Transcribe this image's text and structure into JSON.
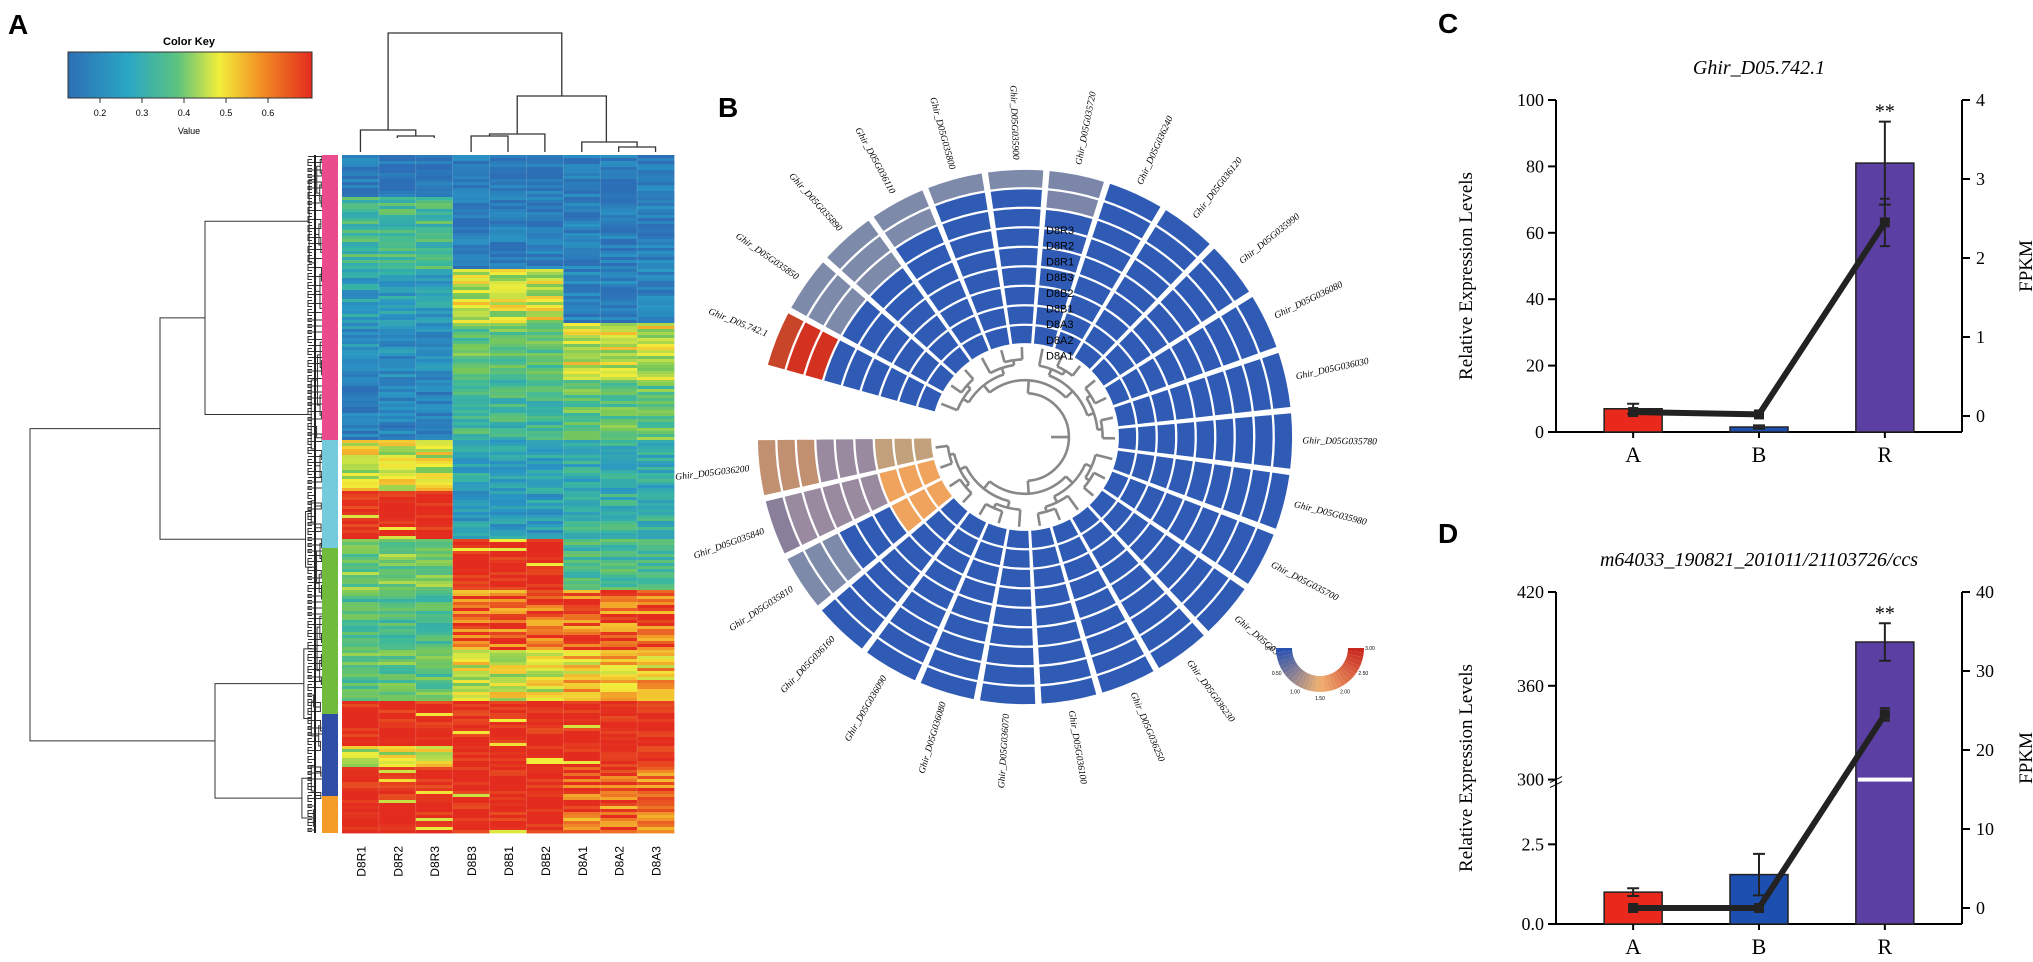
{
  "panel_labels": {
    "a": "A",
    "b": "B",
    "c": "C",
    "d": "D"
  },
  "colors": {
    "heat_low": "#2c6fb6",
    "heat_mid": "#3ab7a8",
    "heat_yellow": "#f2ee3a",
    "heat_high": "#e32b1e",
    "cluster_pink": "#ea4b8d",
    "cluster_cyan": "#74cbdb",
    "cluster_green": "#70bb3c",
    "cluster_blue": "#2f4ea5",
    "cluster_orange": "#f49b28",
    "bar_a": "#e8291c",
    "bar_b": "#1c4fb0",
    "bar_r": "#5b3fa3",
    "line": "#222222"
  },
  "heatmap": {
    "color_key_title": "Color Key",
    "color_key_ticks": [
      "0.2",
      "0.3",
      "0.4",
      "0.5",
      "0.6"
    ],
    "color_key_label": "Value",
    "columns": [
      "D8R1",
      "D8R2",
      "D8R3",
      "D8B3",
      "D8B1",
      "D8B2",
      "D8A1",
      "D8A2",
      "D8A3"
    ]
  },
  "circular": {
    "ring_labels": [
      "D8R3",
      "D8R2",
      "D8R1",
      "D8B3",
      "D8B2",
      "D8B1",
      "D8A3",
      "D8A2",
      "D8A1"
    ],
    "genes": [
      "Ghir_D05.742.1",
      "Ghir_D05G035850",
      "Ghir_D05G035890",
      "Ghir_D05G036110",
      "Ghir_D05G035800",
      "Ghir_D05G035900",
      "Ghir_D05G035720",
      "Ghir_D05G036240",
      "Ghir_D05G036120",
      "Ghir_D05G035990",
      "Ghir_D05G036080",
      "Ghir_D05G036030",
      "Ghir_D05G035780",
      "Ghir_D05G035980",
      "Ghir_D05G035700",
      "Ghir_D05G036150",
      "Ghir_D05G036230",
      "Ghir_D05G036250",
      "Ghir_D05G036100",
      "Ghir_D05G036070",
      "Ghir_D05G036080",
      "Ghir_D05G036090",
      "Ghir_D05G036160",
      "Ghir_D05G035810",
      "Ghir_D05G035840",
      "Ghir_D05G036200"
    ],
    "legend_ticks": [
      "0.00",
      "0.50",
      "1.00",
      "1.50",
      "2.00",
      "2.50",
      "3.00"
    ]
  },
  "chart_data": [
    {
      "type": "bar",
      "panel": "C",
      "title": "Ghir_D05.742.1",
      "categories": [
        "A",
        "B",
        "R"
      ],
      "values": [
        7,
        1.5,
        81
      ],
      "errors": [
        1.5,
        0.5,
        12.5
      ],
      "significance": [
        "",
        "",
        "**"
      ],
      "ylabel": "Relative Expression Levels",
      "ylim": [
        0,
        100
      ],
      "yticks": [
        "0",
        "20",
        "40",
        "60",
        "80",
        "100"
      ],
      "line_series": {
        "name": "FPKM",
        "values": [
          0.05,
          0.02,
          2.45
        ],
        "errors": [
          0.03,
          0.02,
          0.3
        ]
      },
      "y2label": "FPKM",
      "y2lim": [
        0,
        4
      ],
      "y2ticks": [
        "0",
        "1",
        "2",
        "3",
        "4"
      ]
    },
    {
      "type": "bar",
      "panel": "D",
      "title": "m64033_190821_201011/21103726/ccs",
      "categories": [
        "A",
        "B",
        "R"
      ],
      "values": [
        1.0,
        1.55,
        388
      ],
      "errors": [
        0.12,
        0.65,
        12
      ],
      "significance": [
        "",
        "",
        "**"
      ],
      "ylabel": "Relative Expression Levels",
      "axis_break": true,
      "yticks": [
        "0.0",
        "2.5",
        "300",
        "360",
        "420"
      ],
      "line_series": {
        "name": "FPKM",
        "values": [
          0,
          0,
          24.5
        ],
        "errors": [
          0.3,
          0.3,
          0.8
        ]
      },
      "y2label": "FPKM",
      "y2lim": [
        0,
        40
      ],
      "y2ticks": [
        "0",
        "10",
        "20",
        "30",
        "40"
      ]
    }
  ]
}
